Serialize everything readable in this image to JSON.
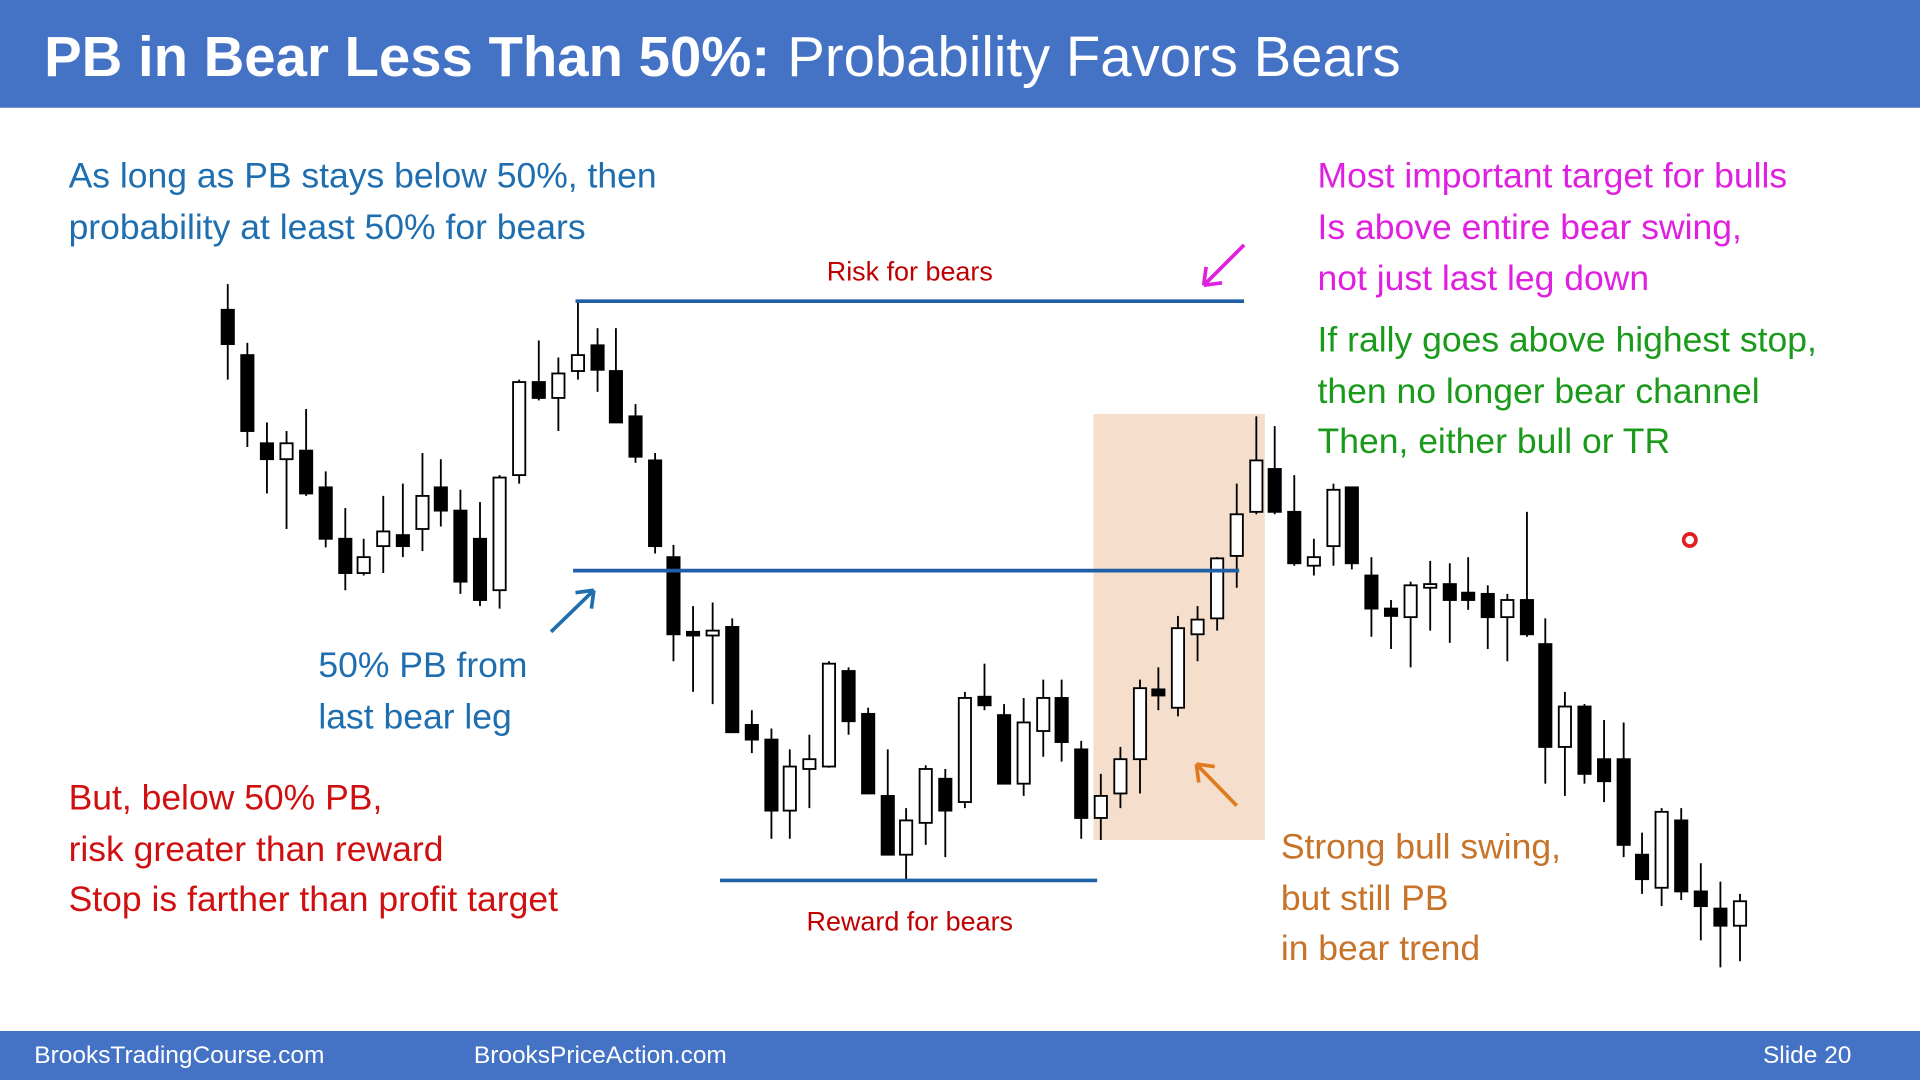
{
  "header": {
    "title_bold": "PB in Bear Less Than 50%:",
    "title_rest": "Probability Favors Bears"
  },
  "left_note": [
    "As long as PB stays below 50%, then",
    "probability at least 50% for bears"
  ],
  "mid_note": [
    "50% PB from",
    "last bear leg"
  ],
  "risk_note": [
    "But, below 50% PB,",
    "risk greater than reward",
    "Stop is farther than profit target"
  ],
  "risk_label": "Risk for bears",
  "reward_label": "Reward for bears",
  "bull_target_note": [
    "Most important target for bulls",
    "Is above entire bear swing,",
    "not just last leg down"
  ],
  "channel_note": [
    "If rally goes above highest stop,",
    "then no longer bear channel",
    "Then, either bull or TR"
  ],
  "swing_note": [
    "Strong bull swing,",
    "but still PB",
    "in bear trend"
  ],
  "footer": {
    "left": "BrooksTradingCourse.com",
    "center": "BrooksPriceAction.com",
    "right": "Slide  20"
  }
}
